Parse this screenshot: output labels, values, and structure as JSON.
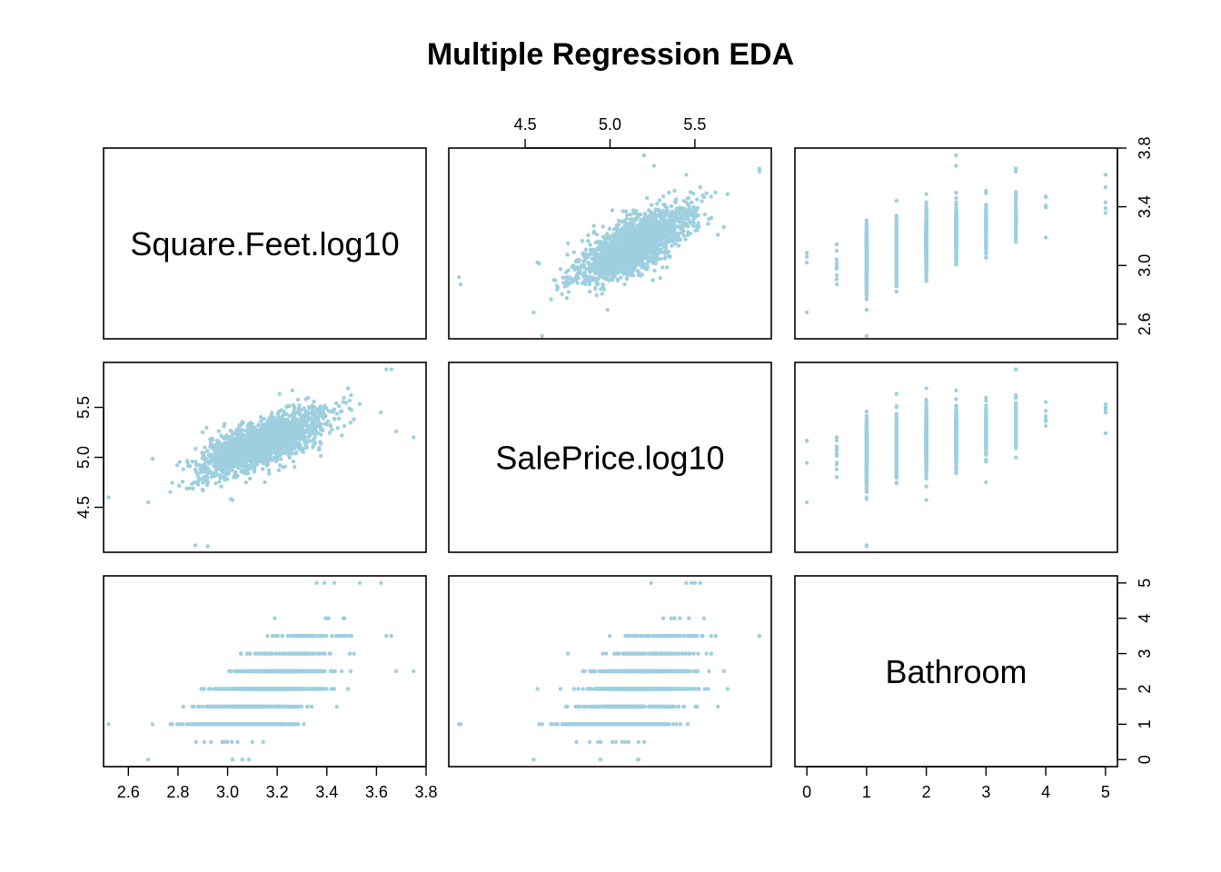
{
  "title": "Multiple Regression EDA",
  "point_color": "#9ecfdf",
  "chart_data": {
    "type": "scatter",
    "title": "Multiple Regression EDA",
    "variables": [
      {
        "name": "Square.Feet.log10",
        "range": [
          2.5,
          3.8
        ],
        "ticks": [
          "2.6",
          "2.8",
          "3.0",
          "3.2",
          "3.4",
          "3.6",
          "3.8"
        ],
        "ticks_side_ticks": [
          "2.6",
          "3.0",
          "3.4",
          "3.8"
        ]
      },
      {
        "name": "SalePrice.log10",
        "range": [
          4.05,
          5.95
        ],
        "ticks": [
          "4.5",
          "5.0",
          "5.5"
        ]
      },
      {
        "name": "Bathroom",
        "range": [
          -0.2,
          5.2
        ],
        "ticks": [
          "0",
          "1",
          "2",
          "3",
          "4",
          "5"
        ]
      }
    ],
    "grid": false,
    "n_points_approx": 2000,
    "pairs": [
      {
        "x": "SalePrice.log10",
        "y": "Square.Feet.log10",
        "relationship": "positive linear"
      },
      {
        "x": "Bathroom",
        "y": "Square.Feet.log10",
        "relationship": "positive, discrete x"
      },
      {
        "x": "Square.Feet.log10",
        "y": "SalePrice.log10",
        "relationship": "positive linear"
      },
      {
        "x": "Bathroom",
        "y": "SalePrice.log10",
        "relationship": "positive, discrete x"
      },
      {
        "x": "Square.Feet.log10",
        "y": "Bathroom",
        "relationship": "positive, discrete y"
      },
      {
        "x": "SalePrice.log10",
        "y": "Bathroom",
        "relationship": "positive, discrete y"
      }
    ],
    "bathroom_levels": [
      0,
      0.5,
      1,
      1.5,
      2,
      2.5,
      3,
      3.5,
      4,
      5
    ],
    "outliers": [
      {
        "sqft": 2.52,
        "price": 4.6,
        "bath": 1
      },
      {
        "sqft": 2.68,
        "price": 4.55,
        "bath": 0
      },
      {
        "sqft": 2.87,
        "price": 4.12,
        "bath": 1
      },
      {
        "sqft": 2.92,
        "price": 4.11,
        "bath": 1
      },
      {
        "sqft": 3.75,
        "price": 5.2,
        "bath": 2.5
      },
      {
        "sqft": 3.68,
        "price": 5.26,
        "bath": 2.5
      },
      {
        "sqft": 3.43,
        "price": 5.48,
        "bath": 5
      },
      {
        "sqft": 3.39,
        "price": 5.5,
        "bath": 5
      },
      {
        "sqft": 3.19,
        "price": 5.38,
        "bath": 4
      },
      {
        "sqft": 3.66,
        "price": 5.88,
        "bath": 3.5
      },
      {
        "sqft": 3.64,
        "price": 5.88,
        "bath": 3.5
      }
    ]
  }
}
